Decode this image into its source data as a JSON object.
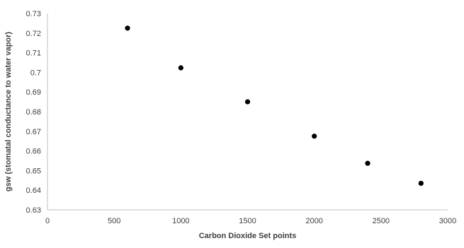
{
  "chart_data": {
    "type": "scatter",
    "title": "",
    "xlabel": "Carbon Dioxide Set points",
    "ylabel": "gsw (stomatal conductance to water vapor)",
    "xlim": [
      0,
      3000
    ],
    "ylim": [
      0.63,
      0.73
    ],
    "x_ticks": [
      "0",
      "500",
      "1000",
      "1500",
      "2000",
      "2500",
      "3000"
    ],
    "y_ticks": [
      "0.63",
      "0.64",
      "0.65",
      "0.66",
      "0.67",
      "0.68",
      "0.69",
      "0.7",
      "0.71",
      "0.72",
      "0.73"
    ],
    "grid": false,
    "legend": "none",
    "marker_color": "#000000",
    "series": [
      {
        "x": [
          600,
          1000,
          1500,
          2000,
          2400,
          2800
        ],
        "y": [
          0.7225,
          0.7023,
          0.685,
          0.6675,
          0.6537,
          0.6435
        ]
      }
    ]
  }
}
